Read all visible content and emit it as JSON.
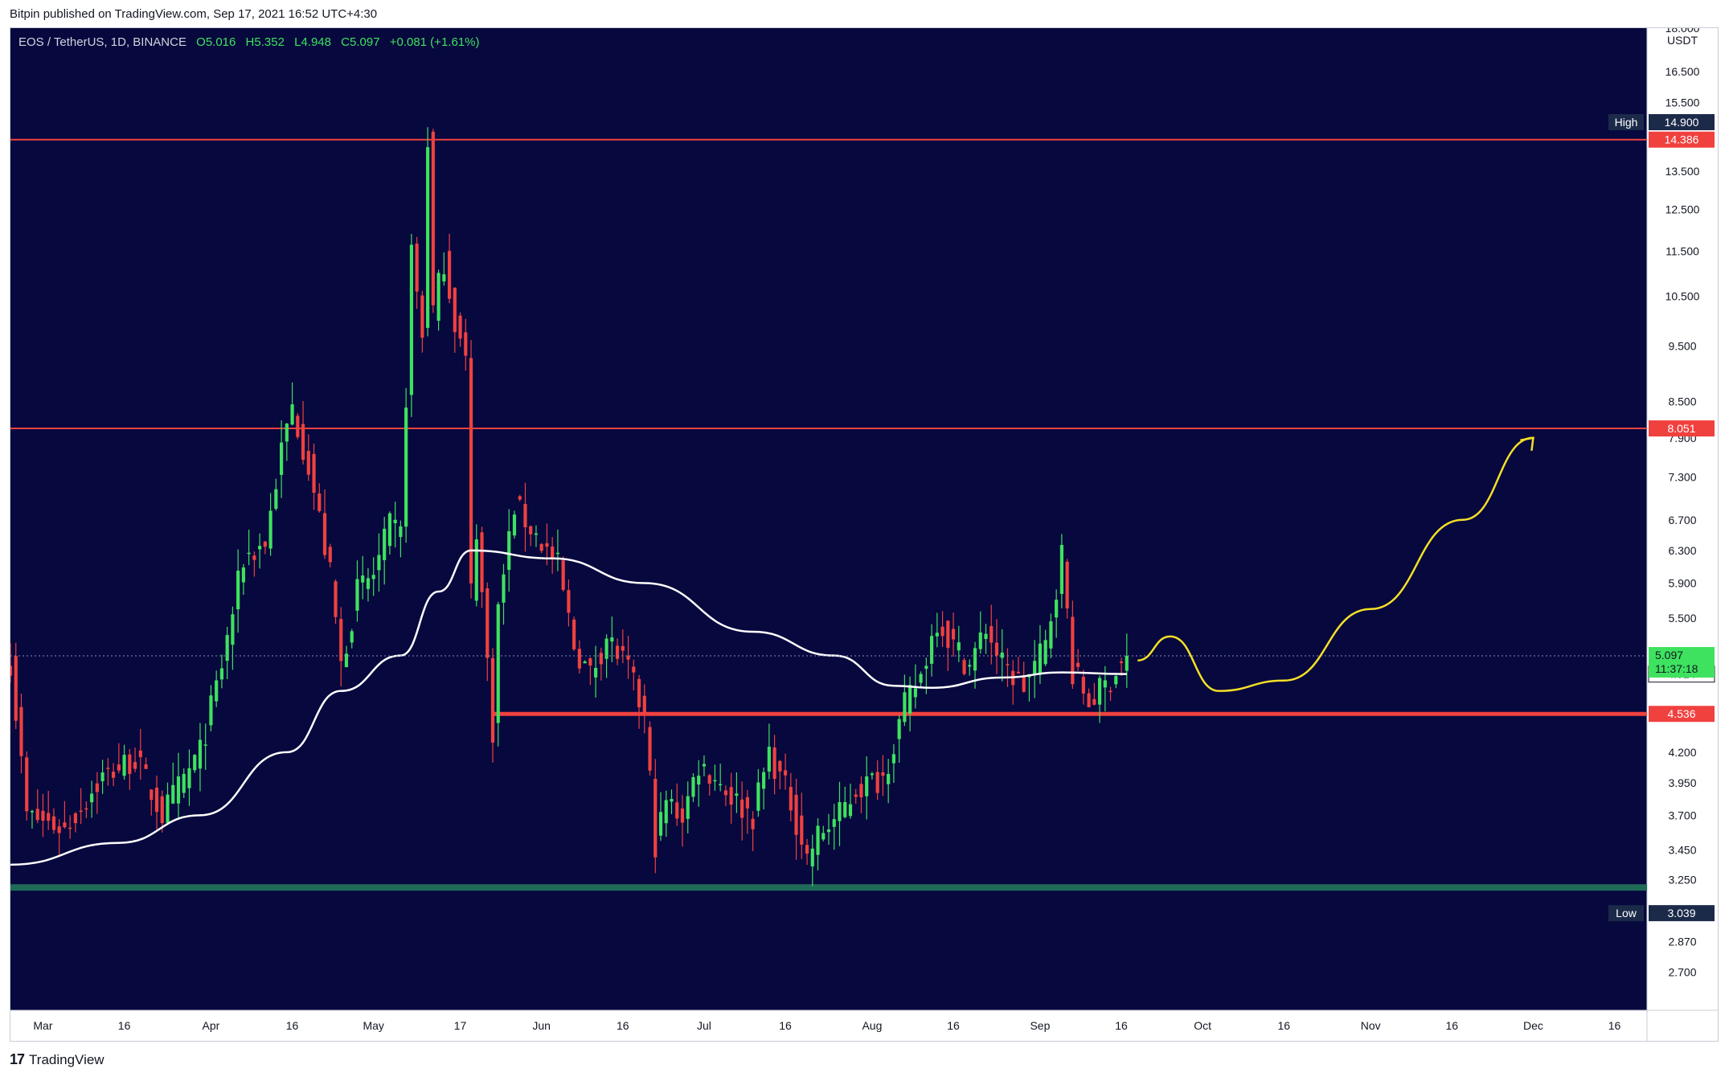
{
  "publisher_line": "Bitpin published on TradingView.com, Sep 17, 2021 16:52 UTC+4:30",
  "footer": {
    "brand": "TradingView",
    "logo_icon": "tradingview-logo-icon"
  },
  "colors": {
    "background": "#07083e",
    "up": "#3ee25f",
    "down": "#f0413f",
    "resistance": "#f0413f",
    "support": "#1f6b57",
    "ma": "#ffffff",
    "projection": "#f5e026",
    "axis_bg": "#ffffff"
  },
  "chart_data": {
    "type": "candlestick",
    "symbol": "EOS / TetherUS, 1D, BINANCE",
    "ohlc_header": {
      "O": "5.016",
      "H": "5.352",
      "L": "4.948",
      "C": "5.097",
      "change": "+0.081 (+1.61%)"
    },
    "y_scale": "log",
    "ylim": [
      2.5,
      18.0
    ],
    "currency": "USDT",
    "y_ticks": [
      "18.000",
      "16.500",
      "15.500",
      "13.500",
      "12.500",
      "11.500",
      "10.500",
      "9.500",
      "8.500",
      "7.900",
      "7.300",
      "6.700",
      "6.300",
      "5.900",
      "5.500",
      "4.200",
      "3.950",
      "3.700",
      "3.450",
      "3.250",
      "2.870",
      "2.700"
    ],
    "x_start_date": "2021-02-23",
    "x_end_date": "2021-12-22",
    "x_ticks": [
      {
        "date": "2021-03-01",
        "label": "Mar"
      },
      {
        "date": "2021-03-16",
        "label": "16"
      },
      {
        "date": "2021-04-01",
        "label": "Apr"
      },
      {
        "date": "2021-04-16",
        "label": "16"
      },
      {
        "date": "2021-05-01",
        "label": "May"
      },
      {
        "date": "2021-05-17",
        "label": "17"
      },
      {
        "date": "2021-06-01",
        "label": "Jun"
      },
      {
        "date": "2021-06-16",
        "label": "16"
      },
      {
        "date": "2021-07-01",
        "label": "Jul"
      },
      {
        "date": "2021-07-16",
        "label": "16"
      },
      {
        "date": "2021-08-01",
        "label": "Aug"
      },
      {
        "date": "2021-08-16",
        "label": "16"
      },
      {
        "date": "2021-09-01",
        "label": "Sep"
      },
      {
        "date": "2021-09-16",
        "label": "16"
      },
      {
        "date": "2021-10-01",
        "label": "Oct"
      },
      {
        "date": "2021-10-16",
        "label": "16"
      },
      {
        "date": "2021-11-01",
        "label": "Nov"
      },
      {
        "date": "2021-11-16",
        "label": "16"
      },
      {
        "date": "2021-12-01",
        "label": "Dec"
      },
      {
        "date": "2021-12-16",
        "label": "16"
      }
    ],
    "keypoints": [
      {
        "date": "2021-02-23",
        "close": 5.05
      },
      {
        "date": "2021-02-26",
        "close": 3.7
      },
      {
        "date": "2021-03-05",
        "close": 3.6
      },
      {
        "date": "2021-03-12",
        "close": 4.0
      },
      {
        "date": "2021-03-18",
        "close": 4.15
      },
      {
        "date": "2021-03-23",
        "close": 3.7
      },
      {
        "date": "2021-03-30",
        "close": 4.2
      },
      {
        "date": "2021-04-03",
        "close": 5.0
      },
      {
        "date": "2021-04-07",
        "close": 6.2
      },
      {
        "date": "2021-04-11",
        "close": 6.4
      },
      {
        "date": "2021-04-14",
        "close": 7.7
      },
      {
        "date": "2021-04-16",
        "close": 8.4
      },
      {
        "date": "2021-04-19",
        "close": 7.5
      },
      {
        "date": "2021-04-23",
        "close": 6.0
      },
      {
        "date": "2021-04-25",
        "close": 5.0
      },
      {
        "date": "2021-04-28",
        "close": 5.8
      },
      {
        "date": "2021-05-01",
        "close": 6.0
      },
      {
        "date": "2021-05-04",
        "close": 6.6
      },
      {
        "date": "2021-05-06",
        "close": 6.5
      },
      {
        "date": "2021-05-07",
        "close": 8.6
      },
      {
        "date": "2021-05-08",
        "close": 11.5
      },
      {
        "date": "2021-05-10",
        "close": 9.7
      },
      {
        "date": "2021-05-11",
        "close": 14.4
      },
      {
        "date": "2021-05-12",
        "close": 10.2
      },
      {
        "date": "2021-05-14",
        "close": 11.3
      },
      {
        "date": "2021-05-16",
        "close": 10.0
      },
      {
        "date": "2021-05-18",
        "close": 9.2
      },
      {
        "date": "2021-05-19",
        "close": 5.8
      },
      {
        "date": "2021-05-20",
        "close": 6.6
      },
      {
        "date": "2021-05-23",
        "close": 4.4
      },
      {
        "date": "2021-05-24",
        "close": 5.6
      },
      {
        "date": "2021-05-27",
        "close": 6.9
      },
      {
        "date": "2021-06-01",
        "close": 6.4
      },
      {
        "date": "2021-06-04",
        "close": 6.1
      },
      {
        "date": "2021-06-07",
        "close": 5.2
      },
      {
        "date": "2021-06-10",
        "close": 4.9
      },
      {
        "date": "2021-06-13",
        "close": 5.3
      },
      {
        "date": "2021-06-17",
        "close": 4.95
      },
      {
        "date": "2021-06-20",
        "close": 4.5
      },
      {
        "date": "2021-06-22",
        "close": 3.5
      },
      {
        "date": "2021-06-24",
        "close": 3.8
      },
      {
        "date": "2021-06-27",
        "close": 3.7
      },
      {
        "date": "2021-06-30",
        "close": 4.1
      },
      {
        "date": "2021-07-03",
        "close": 4.0
      },
      {
        "date": "2021-07-07",
        "close": 3.8
      },
      {
        "date": "2021-07-10",
        "close": 3.7
      },
      {
        "date": "2021-07-13",
        "close": 4.2
      },
      {
        "date": "2021-07-17",
        "close": 3.8
      },
      {
        "date": "2021-07-20",
        "close": 3.4
      },
      {
        "date": "2021-07-22",
        "close": 3.55
      },
      {
        "date": "2021-07-26",
        "close": 3.7
      },
      {
        "date": "2021-07-29",
        "close": 3.9
      },
      {
        "date": "2021-08-03",
        "close": 4.0
      },
      {
        "date": "2021-08-07",
        "close": 4.6
      },
      {
        "date": "2021-08-10",
        "close": 4.9
      },
      {
        "date": "2021-08-13",
        "close": 5.5
      },
      {
        "date": "2021-08-16",
        "close": 5.2
      },
      {
        "date": "2021-08-19",
        "close": 5.0
      },
      {
        "date": "2021-08-22",
        "close": 5.4
      },
      {
        "date": "2021-08-25",
        "close": 5.0
      },
      {
        "date": "2021-08-29",
        "close": 4.8
      },
      {
        "date": "2021-09-02",
        "close": 5.2
      },
      {
        "date": "2021-09-05",
        "close": 6.25
      },
      {
        "date": "2021-09-07",
        "close": 4.95
      },
      {
        "date": "2021-09-10",
        "close": 4.65
      },
      {
        "date": "2021-09-13",
        "close": 4.8
      },
      {
        "date": "2021-09-17",
        "close": 5.097
      }
    ],
    "moving_average_keypoints": [
      {
        "date": "2021-02-23",
        "value": 3.35
      },
      {
        "date": "2021-03-15",
        "value": 3.5
      },
      {
        "date": "2021-03-30",
        "value": 3.7
      },
      {
        "date": "2021-04-15",
        "value": 4.2
      },
      {
        "date": "2021-04-25",
        "value": 4.75
      },
      {
        "date": "2021-05-06",
        "value": 5.1
      },
      {
        "date": "2021-05-13",
        "value": 5.8
      },
      {
        "date": "2021-05-19",
        "value": 6.3
      },
      {
        "date": "2021-06-03",
        "value": 6.2
      },
      {
        "date": "2021-06-20",
        "value": 5.9
      },
      {
        "date": "2021-07-10",
        "value": 5.35
      },
      {
        "date": "2021-07-25",
        "value": 5.1
      },
      {
        "date": "2021-08-05",
        "value": 4.8
      },
      {
        "date": "2021-08-12",
        "value": 4.78
      },
      {
        "date": "2021-08-25",
        "value": 4.88
      },
      {
        "date": "2021-09-05",
        "value": 4.93
      },
      {
        "date": "2021-09-17",
        "value": 4.914
      }
    ],
    "horizontal_lines": [
      {
        "value": 14.386,
        "label": "14.386",
        "style": "resistance"
      },
      {
        "value": 8.051,
        "label": "8.051",
        "style": "resistance"
      },
      {
        "value": 4.536,
        "label": "4.536",
        "style": "resistance-thick"
      },
      {
        "value": 3.2,
        "label": "",
        "style": "support"
      }
    ],
    "projection_path": [
      {
        "date": "2021-09-19",
        "value": 5.05
      },
      {
        "date": "2021-09-25",
        "value": 5.3
      },
      {
        "date": "2021-10-04",
        "value": 4.75
      },
      {
        "date": "2021-10-16",
        "value": 4.85
      },
      {
        "date": "2021-11-01",
        "value": 5.6
      },
      {
        "date": "2021-11-18",
        "value": 6.7
      },
      {
        "date": "2021-12-01",
        "value": 7.9
      }
    ],
    "high_low": {
      "high_label": "High",
      "high_value": "14.900",
      "low_label": "Low",
      "low_value": "3.039"
    },
    "price_labels": {
      "last": "5.097",
      "countdown": "11:37:18",
      "ma": "4.914"
    }
  }
}
